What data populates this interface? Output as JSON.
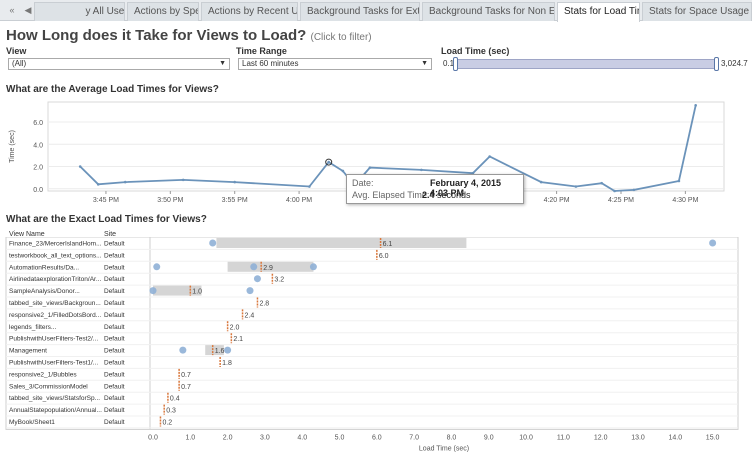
{
  "tabs": [
    "                y All Users",
    "Actions by Specific User",
    "Actions by Recent Users",
    "Background Tasks for Extracts",
    "Background Tasks for Non Extracts",
    "Stats for Load Times",
    "Stats for Space Usage"
  ],
  "active_tab": 5,
  "tab_nav": {
    "first": "«",
    "prev": "◀"
  },
  "page": {
    "title": "How Long does it Take for Views to Load?",
    "subtitle": "(Click to filter)"
  },
  "filters": {
    "view": {
      "label": "View",
      "value": "(All)"
    },
    "time_range": {
      "label": "Time Range",
      "value": "Last 60 minutes"
    },
    "load_time": {
      "label": "Load Time (sec)",
      "min": "0.1",
      "max": "3,024.7"
    }
  },
  "sections": {
    "avg": "What are the Average Load Times for Views?",
    "exact": "What are the Exact Load Times for Views?"
  },
  "tooltip": {
    "date_label": "Date:",
    "date_value": "February 4, 2015 4:03 PM",
    "elapsed_label": "Avg. Elapsed Time:",
    "elapsed_value": "2.4",
    "elapsed_unit": "seconds"
  },
  "columns": {
    "view": "View Name",
    "site": "Site"
  },
  "colors": {
    "line": "#6b93ba",
    "dot": "#8fb0d6",
    "bar": "#d5d5d5",
    "median": "#d9773b"
  },
  "chart_data": [
    {
      "type": "line",
      "title": "What are the Average Load Times for Views?",
      "ylabel": "Time (sec)",
      "ylim": [
        -0.2,
        7.8
      ],
      "yticks": [
        "0.0",
        "2.0",
        "4.0",
        "6.0"
      ],
      "yticks_v": [
        0,
        2,
        4,
        6
      ],
      "xticks": [
        "3:45 PM",
        "3:50 PM",
        "3:55 PM",
        "4:00 PM",
        "4:20 PM",
        "4:25 PM",
        "4:30 PM"
      ],
      "xticks_t": [
        -15,
        -10,
        -5,
        0,
        20,
        25,
        30
      ],
      "xlim": [
        -19.5,
        33
      ],
      "points": [
        [
          -17,
          2.0
        ],
        [
          -15.6,
          0.4
        ],
        [
          -13.5,
          0.6
        ],
        [
          -9,
          0.8
        ],
        [
          -5,
          0.6
        ],
        [
          0.8,
          0.2
        ],
        [
          2.3,
          2.4
        ],
        [
          3.4,
          1.6
        ],
        [
          4.3,
          0.3
        ],
        [
          5.5,
          1.9
        ],
        [
          9.5,
          1.7
        ],
        [
          13.5,
          1.4
        ],
        [
          14.8,
          2.9
        ],
        [
          18.8,
          0.6
        ],
        [
          21.5,
          0.2
        ],
        [
          23.5,
          0.5
        ],
        [
          24.5,
          -0.2
        ],
        [
          26,
          -0.1
        ],
        [
          29.5,
          0.7
        ],
        [
          30.8,
          7.5
        ]
      ],
      "grid": true
    },
    {
      "type": "scatter",
      "title": "What are the Exact Load Times for Views?",
      "xlabel": "Load Time (sec)",
      "xlim": [
        0,
        15.6
      ],
      "xticks": [
        "0.0",
        "1.0",
        "2.0",
        "3.0",
        "4.0",
        "5.0",
        "6.0",
        "7.0",
        "8.0",
        "9.0",
        "10.0",
        "11.0",
        "12.0",
        "13.0",
        "14.0",
        "15.0"
      ],
      "rows": [
        {
          "view": "Finance_23/MercerIslandHom...",
          "site": "Default",
          "label": "6.1",
          "median": 6.1,
          "box": [
            1.7,
            8.4
          ],
          "points": [
            1.6,
            15.0
          ]
        },
        {
          "view": "testworkbook_all_text_options...",
          "site": "Default",
          "label": "6.0",
          "median": 6.0,
          "box": null,
          "points": []
        },
        {
          "view": "AutomationResults/Da...",
          "site": "Default",
          "label": "2.9",
          "median": 2.9,
          "box": [
            2.0,
            4.3
          ],
          "points": [
            0.1,
            2.7,
            4.3
          ]
        },
        {
          "view": "AirlinedataexplorationTriton/Ar...",
          "site": "Default",
          "label": "3.2",
          "median": 3.2,
          "box": null,
          "points": [
            2.8
          ]
        },
        {
          "view": "SampleAnalysis/Donor...",
          "site": "Default",
          "label": "1.0",
          "median": 1.0,
          "box": [
            0.0,
            1.3
          ],
          "points": [
            0.0,
            2.6
          ]
        },
        {
          "view": "tabbed_site_views/Backgroun...",
          "site": "Default",
          "label": "2.8",
          "median": 2.8,
          "box": null,
          "points": []
        },
        {
          "view": "responsive2_1/FilledDotsBord...",
          "site": "Default",
          "label": "2.4",
          "median": 2.4,
          "box": null,
          "points": []
        },
        {
          "view": "legends_filters...",
          "site": "Default",
          "label": "2.0",
          "median": 2.0,
          "box": null,
          "points": []
        },
        {
          "view": "PublishwithUserFilters-Test2/...",
          "site": "Default",
          "label": "2.1",
          "median": 2.1,
          "box": null,
          "points": []
        },
        {
          "view": "Management",
          "site": "Default",
          "label": "1.6",
          "median": 1.6,
          "box": [
            1.4,
            1.9
          ],
          "points": [
            0.8,
            2.0
          ]
        },
        {
          "view": "PublishwithUserFilters-Test1/...",
          "site": "Default",
          "label": "1.8",
          "median": 1.8,
          "box": null,
          "points": []
        },
        {
          "view": "responsive2_1/Bubbles",
          "site": "Default",
          "label": "0.7",
          "median": 0.7,
          "box": null,
          "points": []
        },
        {
          "view": "Sales_3/CommissionModel",
          "site": "Default",
          "label": "0.7",
          "median": 0.7,
          "box": null,
          "points": []
        },
        {
          "view": "tabbed_site_views/StatsforSp...",
          "site": "Default",
          "label": "0.4",
          "median": 0.4,
          "box": null,
          "points": []
        },
        {
          "view": "AnnualStatepopulation/Annual...",
          "site": "Default",
          "label": "0.3",
          "median": 0.3,
          "box": null,
          "points": []
        },
        {
          "view": "MyBook/Sheet1",
          "site": "Default",
          "label": "0.2",
          "median": 0.2,
          "box": null,
          "points": []
        }
      ]
    }
  ]
}
